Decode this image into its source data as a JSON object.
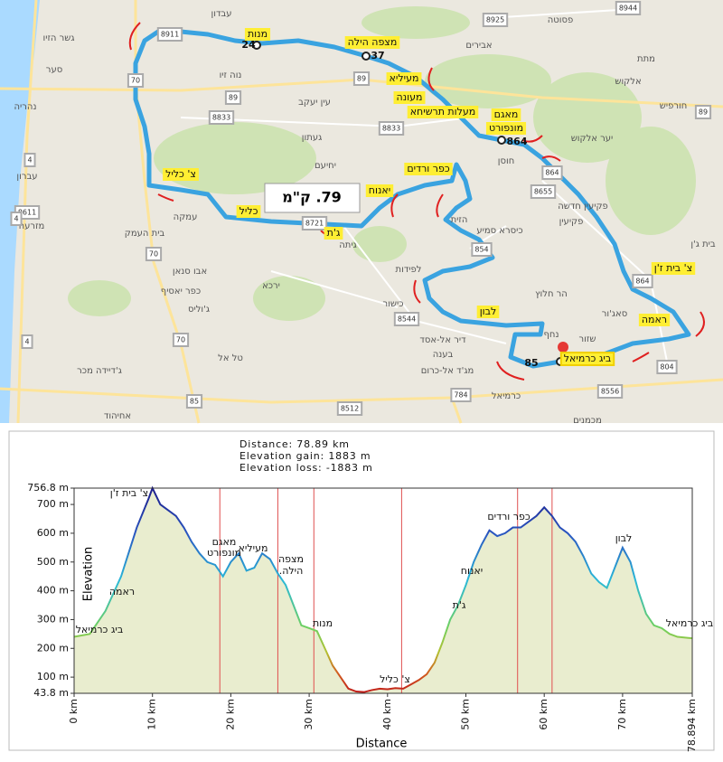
{
  "map": {
    "route_labels": [
      "מנות",
      "מצפה הילה",
      "מעיליא",
      "מעונה",
      "מעלות תרשיחא",
      "מאגם",
      "מונפורט",
      "צ' כליל",
      "כליל",
      "יאנוח",
      "כפר ורדים",
      "ג'ת",
      "לבון",
      "צ' בית ז'ן",
      "ראמה",
      "ביג כרמיאל"
    ],
    "places": [
      "עבדון",
      "גשר הזיו",
      "סער",
      "נהריה",
      "עברון",
      "מזרעה",
      "בית העמק",
      "עמקה",
      "נוה זיו",
      "עין יעקב",
      "געתון",
      "יחיעם",
      "אבירים",
      "פסוטה",
      "מתת",
      "אלקוש",
      "חורפיש",
      "יער אלקוש",
      "חוסן",
      "פקיעין חדשה",
      "פקיעין",
      "כיסרא סמיע",
      "לפידות",
      "ירכא",
      "אבו סנאן",
      "כפר יאסיף",
      "ג'וליס",
      "טל אל",
      "ג'דיידה מכר",
      "אחיהוד",
      "כישור",
      "הר חלוץ",
      "סאג'ור",
      "שזור",
      "נחף",
      "דיר אל-אסד",
      "בענה",
      "מג'ד אל-כרום",
      "כרמיאל",
      "מכמנים",
      "גיתה",
      "בית ג'ן",
      "הזית"
    ],
    "road_numbers": [
      "8911",
      "70",
      "89",
      "8833",
      "89",
      "8833",
      "89",
      "4",
      "8611",
      "4",
      "70",
      "70",
      "4",
      "85",
      "8512",
      "784",
      "8544",
      "854",
      "8721",
      "864",
      "8655",
      "864",
      "804",
      "8556",
      "8925",
      "8944"
    ],
    "waypoint_numbers": [
      "24",
      "37",
      "864",
      "85"
    ],
    "distance_badge": "79. ק\"מ"
  },
  "chart_data": {
    "type": "area",
    "info": [
      "Distance: 78.89 km",
      "Elevation gain: 1883 m",
      "Elevation loss: -1883 m"
    ],
    "y_label": "Elevation",
    "x_label": "Distance",
    "x": [
      0,
      2,
      4,
      6,
      8,
      9.5,
      10,
      11,
      12,
      13,
      14,
      15,
      16,
      17,
      18,
      19,
      20,
      21,
      22,
      23,
      24,
      25,
      26,
      27,
      28,
      29,
      30,
      31,
      32,
      33,
      34,
      35,
      36,
      37,
      38,
      39,
      40,
      41,
      42,
      43,
      44,
      45,
      46,
      47,
      48,
      49,
      50,
      51,
      52,
      53,
      54,
      55,
      56,
      57,
      58,
      59,
      60,
      61,
      62,
      63,
      64,
      65,
      66,
      67,
      68,
      69,
      70,
      71,
      72,
      73,
      74,
      75,
      76,
      77,
      78.894
    ],
    "values": [
      240,
      250,
      330,
      450,
      620,
      720,
      756.8,
      700,
      680,
      660,
      620,
      570,
      530,
      500,
      490,
      450,
      500,
      530,
      470,
      480,
      530,
      510,
      460,
      420,
      350,
      280,
      270,
      260,
      200,
      140,
      100,
      60,
      50,
      48,
      55,
      60,
      58,
      62,
      60,
      75,
      90,
      110,
      150,
      220,
      300,
      350,
      420,
      500,
      560,
      610,
      590,
      600,
      620,
      620,
      640,
      660,
      690,
      660,
      620,
      600,
      570,
      520,
      460,
      430,
      410,
      480,
      550,
      500,
      400,
      320,
      280,
      270,
      250,
      240,
      235
    ],
    "waypoint_distances": [
      18.6,
      26,
      30.6,
      41.8,
      56.6,
      61
    ],
    "xlim": [
      0,
      78.894
    ],
    "ylim": [
      43.8,
      756.8
    ],
    "xticks": [
      {
        "value": 0,
        "label": "0 km"
      },
      {
        "value": 10,
        "label": "10 km"
      },
      {
        "value": 20,
        "label": "20 km"
      },
      {
        "value": 30,
        "label": "30 km"
      },
      {
        "value": 40,
        "label": "40 km"
      },
      {
        "value": 50,
        "label": "50 km"
      },
      {
        "value": 60,
        "label": "60 km"
      },
      {
        "value": 70,
        "label": "70 km"
      },
      {
        "value": 78.894,
        "label": "78.894 km"
      }
    ],
    "yticks": [
      {
        "value": 43.8,
        "label": "43.8 m"
      },
      {
        "value": 100,
        "label": "100 m"
      },
      {
        "value": 200,
        "label": "200 m"
      },
      {
        "value": 300,
        "label": "300 m"
      },
      {
        "value": 400,
        "label": "400 m"
      },
      {
        "value": 500,
        "label": "500 m"
      },
      {
        "value": 600,
        "label": "600 m"
      },
      {
        "value": 700,
        "label": "700 m"
      },
      {
        "value": 756.8,
        "label": "756.8 m"
      }
    ],
    "annotations": [
      "ביג כרמיאל",
      "ראמה",
      "צ' בית ז'ן",
      "מאגם",
      "מונפורט",
      "מעיליא",
      "מצפה",
      "הילה.",
      "מנות",
      "צ' כליל",
      "ג'ת",
      "יאנוח",
      "כפר ורדים",
      "לבון",
      "ביג כרמיאל"
    ],
    "fill_color": "#e9edcf"
  }
}
